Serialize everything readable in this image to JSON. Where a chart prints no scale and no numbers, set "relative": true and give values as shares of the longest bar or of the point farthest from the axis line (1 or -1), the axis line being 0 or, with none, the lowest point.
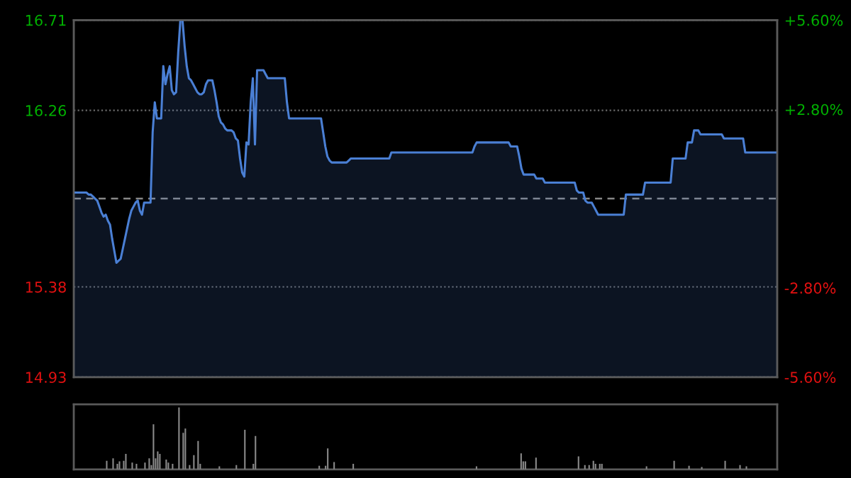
{
  "chart_data": [
    {
      "type": "area",
      "series": [
        {
          "color": "#4a7fd4",
          "values": [
            15.85,
            15.85,
            15.85,
            15.85,
            15.85,
            15.85,
            15.85,
            15.84,
            15.84,
            15.83,
            15.82,
            15.81,
            15.78,
            15.75,
            15.73,
            15.74,
            15.71,
            15.69,
            15.62,
            15.56,
            15.5,
            15.51,
            15.52,
            15.57,
            15.62,
            15.67,
            15.72,
            15.76,
            15.78,
            15.8,
            15.81,
            15.76,
            15.74,
            15.8,
            15.8,
            15.8,
            15.8,
            16.15,
            16.3,
            16.22,
            16.22,
            16.22,
            16.48,
            16.39,
            16.44,
            16.48,
            16.36,
            16.34,
            16.35,
            16.55,
            16.71,
            16.71,
            16.58,
            16.48,
            16.42,
            16.41,
            16.39,
            16.37,
            16.35,
            16.34,
            16.34,
            16.35,
            16.39,
            16.41,
            16.41,
            16.41,
            16.36,
            16.3,
            16.23,
            16.2,
            16.19,
            16.17,
            16.16,
            16.16,
            16.16,
            16.15,
            16.12,
            16.11,
            16.02,
            15.95,
            15.93,
            16.1,
            16.09,
            16.3,
            16.42,
            16.09,
            16.46,
            16.46,
            16.46,
            16.46,
            16.44,
            16.42,
            16.42,
            16.42,
            16.42,
            16.42,
            16.42,
            16.42,
            16.42,
            16.42,
            16.3,
            16.22,
            16.22,
            16.22,
            16.22,
            16.22,
            16.22,
            16.22,
            16.22,
            16.22,
            16.22,
            16.22,
            16.22,
            16.22,
            16.22,
            16.22,
            16.22,
            16.15,
            16.08,
            16.03,
            16.01,
            16.0,
            16.0,
            16.0,
            16.0,
            16.0,
            16.0,
            16.0,
            16.0,
            16.01,
            16.02,
            16.02,
            16.02,
            16.02,
            16.02,
            16.02,
            16.02,
            16.02,
            16.02,
            16.02,
            16.02,
            16.02,
            16.02,
            16.02,
            16.02,
            16.02,
            16.02,
            16.02,
            16.02,
            16.05,
            16.05,
            16.05,
            16.05,
            16.05,
            16.05,
            16.05,
            16.05,
            16.05,
            16.05,
            16.05,
            16.05,
            16.05,
            16.05,
            16.05,
            16.05,
            16.05,
            16.05,
            16.05,
            16.05,
            16.05,
            16.05,
            16.05,
            16.05,
            16.05,
            16.05,
            16.05,
            16.05,
            16.05,
            16.05,
            16.05,
            16.05,
            16.05,
            16.05,
            16.05,
            16.05,
            16.05,
            16.05,
            16.05,
            16.08,
            16.1,
            16.1,
            16.1,
            16.1,
            16.1,
            16.1,
            16.1,
            16.1,
            16.1,
            16.1,
            16.1,
            16.1,
            16.1,
            16.1,
            16.1,
            16.1,
            16.08,
            16.08,
            16.08,
            16.08,
            16.03,
            15.97,
            15.94,
            15.94,
            15.94,
            15.94,
            15.94,
            15.94,
            15.92,
            15.92,
            15.92,
            15.92,
            15.9,
            15.9,
            15.9,
            15.9,
            15.9,
            15.9,
            15.9,
            15.9,
            15.9,
            15.9,
            15.9,
            15.9,
            15.9,
            15.9,
            15.9,
            15.86,
            15.85,
            15.85,
            15.85,
            15.81,
            15.8,
            15.8,
            15.8,
            15.78,
            15.76,
            15.74,
            15.74,
            15.74,
            15.74,
            15.74,
            15.74,
            15.74,
            15.74,
            15.74,
            15.74,
            15.74,
            15.74,
            15.74,
            15.84,
            15.84,
            15.84,
            15.84,
            15.84,
            15.84,
            15.84,
            15.84,
            15.84,
            15.9,
            15.9,
            15.9,
            15.9,
            15.9,
            15.9,
            15.9,
            15.9,
            15.9,
            15.9,
            15.9,
            15.9,
            15.9,
            16.02,
            16.02,
            16.02,
            16.02,
            16.02,
            16.02,
            16.02,
            16.1,
            16.1,
            16.1,
            16.16,
            16.16,
            16.16,
            16.14,
            16.14,
            16.14,
            16.14,
            16.14,
            16.14,
            16.14,
            16.14,
            16.14,
            16.14,
            16.14,
            16.12,
            16.12,
            16.12,
            16.12,
            16.12,
            16.12,
            16.12,
            16.12,
            16.12,
            16.12,
            16.05,
            16.05,
            16.05,
            16.05,
            16.05,
            16.05,
            16.05,
            16.05,
            16.05,
            16.05,
            16.05,
            16.05,
            16.05,
            16.05,
            16.05,
            16.05
          ]
        }
      ],
      "categories": [
        null,
        null,
        null,
        null,
        null,
        null,
        null,
        null,
        null,
        null,
        null,
        null,
        null,
        null,
        null,
        null,
        null,
        null,
        null,
        null,
        null,
        null,
        null,
        null,
        null,
        null,
        null,
        null,
        null,
        null,
        null,
        null,
        null,
        null,
        null,
        null,
        null,
        null,
        null,
        null,
        null,
        null,
        null,
        null,
        null,
        null,
        null,
        null,
        null,
        null,
        null,
        null,
        null,
        null,
        null,
        null,
        null,
        null,
        null,
        null,
        null,
        null,
        null,
        null,
        null,
        null,
        null,
        null,
        null,
        null,
        null,
        null,
        null,
        null,
        null,
        null,
        null,
        null,
        null,
        null,
        null,
        null,
        null,
        null,
        null,
        null,
        null,
        null,
        null,
        null,
        null,
        null,
        null,
        null,
        null,
        null,
        null,
        null,
        null,
        null,
        null,
        null,
        null,
        null,
        null,
        null,
        null,
        null,
        null,
        null,
        null,
        null,
        null,
        null,
        null,
        null,
        null,
        null,
        null,
        null,
        null,
        null,
        null,
        null,
        null,
        null,
        null,
        null,
        null,
        null,
        null,
        null,
        null,
        null,
        null,
        null,
        null,
        null,
        null,
        null,
        null,
        null,
        null,
        null,
        null,
        null,
        null,
        null,
        null,
        null,
        null,
        null,
        null,
        null,
        null,
        null,
        null,
        null,
        null,
        null,
        null,
        null,
        null,
        null,
        null,
        null,
        null,
        null,
        null,
        null,
        null,
        null,
        null,
        null,
        null,
        null,
        null,
        null,
        null,
        null,
        null,
        null,
        null,
        null,
        null,
        null,
        null,
        null,
        null,
        null,
        null,
        null,
        null,
        null,
        null,
        null,
        null,
        null,
        null,
        null,
        null,
        null,
        null,
        null,
        null,
        null,
        null,
        null,
        null,
        null,
        null,
        null,
        null,
        null,
        null,
        null,
        null,
        null,
        null,
        null,
        null,
        null,
        null,
        null,
        null,
        null,
        null,
        null,
        null,
        null,
        null,
        null,
        null,
        null,
        null,
        null,
        null,
        null,
        null,
        null,
        null,
        null,
        null,
        null,
        null,
        null,
        null,
        null,
        null,
        null,
        null,
        null,
        null,
        null,
        null,
        null,
        null,
        null,
        null,
        null,
        null,
        null,
        null,
        null,
        null,
        null,
        null,
        null,
        null,
        null,
        null,
        null,
        null,
        null,
        null,
        null,
        null,
        null,
        null,
        null,
        null,
        null,
        null,
        null,
        null,
        null,
        null,
        null,
        null,
        null,
        null,
        null,
        null,
        null,
        null,
        null,
        null,
        null,
        null,
        null,
        null,
        null,
        null,
        null,
        null,
        null,
        null,
        null,
        null,
        null,
        null,
        null,
        null,
        null,
        null,
        null,
        null,
        null,
        null,
        null,
        null,
        null,
        null,
        null,
        null,
        null,
        null,
        null,
        null,
        null,
        null
      ],
      "ylim": [
        14.93,
        16.71
      ],
      "yticks": [
        14.93,
        15.38,
        16.26,
        16.71
      ],
      "y2lim": [
        -5.6,
        5.6
      ],
      "y2ticks": [
        {
          "value": -5.6,
          "label": "-5.60%"
        },
        {
          "value": -2.8,
          "label": "-2.80%"
        },
        {
          "value": 2.8,
          "label": "+2.80%"
        },
        {
          "value": 5.6,
          "label": "+5.60%"
        }
      ],
      "ref_lines": [
        {
          "axis": "y",
          "value": 15.82,
          "line_style": "dashed",
          "color": "#888888"
        }
      ],
      "grid": "y"
    },
    {
      "type": "bar",
      "relative": true,
      "categories": [
        null,
        null,
        null,
        null,
        null,
        null,
        null,
        null,
        null,
        null,
        null,
        null,
        null,
        null,
        null,
        null,
        null,
        null,
        null,
        null,
        null,
        null,
        null,
        null,
        null,
        null,
        null,
        null,
        null,
        null,
        null,
        null,
        null,
        null,
        null,
        null,
        null,
        null,
        null,
        null,
        null,
        null,
        null,
        null,
        null,
        null,
        null,
        null,
        null,
        null,
        null,
        null,
        null,
        null,
        null,
        null,
        null,
        null,
        null,
        null,
        null,
        null,
        null,
        null,
        null,
        null,
        null,
        null,
        null,
        null,
        null,
        null,
        null,
        null,
        null,
        null,
        null,
        null,
        null,
        null,
        null,
        null,
        null,
        null,
        null,
        null,
        null,
        null,
        null,
        null,
        null,
        null,
        null,
        null,
        null,
        null,
        null,
        null,
        null,
        null,
        null,
        null,
        null,
        null,
        null,
        null,
        null,
        null,
        null,
        null,
        null,
        null,
        null,
        null,
        null,
        null,
        null,
        null,
        null,
        null,
        null,
        null,
        null,
        null,
        null,
        null,
        null,
        null,
        null,
        null,
        null,
        null,
        null,
        null,
        null,
        null,
        null,
        null,
        null,
        null,
        null,
        null,
        null,
        null,
        null,
        null,
        null,
        null,
        null,
        null,
        null,
        null,
        null,
        null,
        null,
        null,
        null,
        null,
        null,
        null,
        null,
        null,
        null,
        null,
        null,
        null,
        null,
        null,
        null,
        null,
        null,
        null,
        null,
        null,
        null,
        null,
        null,
        null,
        null,
        null,
        null,
        null,
        null,
        null,
        null,
        null,
        null,
        null,
        null,
        null,
        null,
        null,
        null,
        null,
        null,
        null,
        null,
        null,
        null,
        null,
        null,
        null,
        null,
        null,
        null,
        null,
        null,
        null,
        null,
        null,
        null,
        null,
        null,
        null,
        null,
        null,
        null,
        null,
        null,
        null,
        null,
        null,
        null,
        null,
        null,
        null,
        null,
        null,
        null,
        null,
        null,
        null,
        null,
        null,
        null,
        null,
        null,
        null,
        null,
        null,
        null,
        null,
        null,
        null,
        null,
        null,
        null,
        null,
        null,
        null,
        null,
        null,
        null,
        null,
        null,
        null,
        null,
        null,
        null,
        null,
        null,
        null,
        null,
        null,
        null,
        null,
        null,
        null,
        null,
        null,
        null,
        null,
        null,
        null,
        null,
        null,
        null,
        null,
        null,
        null,
        null,
        null,
        null,
        null,
        null,
        null,
        null,
        null,
        null,
        null,
        null,
        null,
        null,
        null,
        null,
        null,
        null,
        null,
        null,
        null,
        null,
        null,
        null,
        null,
        null,
        null,
        null,
        null,
        null,
        null,
        null,
        null,
        null,
        null,
        null,
        null,
        null,
        null,
        null,
        null,
        null,
        null,
        null,
        null,
        null,
        null,
        null,
        null,
        null,
        null,
        null
      ],
      "values": [
        null,
        null,
        null,
        null,
        null,
        null,
        null,
        null,
        null,
        null,
        null,
        null,
        null,
        null,
        null,
        0.14,
        null,
        null,
        0.18,
        null,
        0.09,
        0.13,
        null,
        0.14,
        0.25,
        null,
        null,
        0.11,
        null,
        0.09,
        null,
        null,
        null,
        0.11,
        null,
        0.18,
        0.07,
        0.73,
        0.18,
        0.29,
        0.25,
        null,
        null,
        0.16,
        0.11,
        null,
        0.09,
        null,
        null,
        1.0,
        null,
        0.59,
        0.66,
        null,
        0.07,
        null,
        0.23,
        null,
        0.46,
        0.09,
        null,
        null,
        null,
        null,
        null,
        null,
        null,
        null,
        0.05,
        null,
        null,
        null,
        null,
        null,
        null,
        null,
        0.07,
        null,
        null,
        null,
        0.64,
        null,
        null,
        null,
        0.09,
        0.54,
        null,
        null,
        null,
        null,
        null,
        null,
        null,
        null,
        null,
        null,
        null,
        null,
        null,
        null,
        null,
        null,
        null,
        null,
        null,
        null,
        null,
        null,
        null,
        null,
        null,
        null,
        null,
        null,
        null,
        0.06,
        null,
        null,
        0.06,
        0.34,
        null,
        null,
        0.12,
        null,
        null,
        null,
        null,
        null,
        null,
        null,
        null,
        0.09,
        null,
        null,
        null,
        null,
        null,
        null,
        null,
        null,
        null,
        null,
        null,
        null,
        null,
        null,
        null,
        null,
        null,
        null,
        null,
        null,
        null,
        null,
        null,
        null,
        null,
        null,
        null,
        null,
        null,
        null,
        null,
        null,
        null,
        null,
        null,
        null,
        null,
        null,
        null,
        null,
        null,
        null,
        null,
        null,
        null,
        null,
        null,
        null,
        null,
        null,
        null,
        null,
        null,
        null,
        null,
        null,
        null,
        0.05,
        null,
        null,
        null,
        null,
        null,
        null,
        null,
        null,
        null,
        null,
        null,
        null,
        null,
        null,
        null,
        null,
        null,
        null,
        null,
        null,
        0.26,
        0.13,
        0.13,
        null,
        null,
        null,
        null,
        0.19,
        null,
        null,
        null,
        null,
        null,
        null,
        null,
        null,
        null,
        null,
        null,
        null,
        null,
        null,
        null,
        null,
        null,
        null,
        null,
        0.21,
        null,
        null,
        0.07,
        null,
        0.07,
        null,
        0.14,
        0.09,
        null,
        0.09,
        0.09,
        null,
        null,
        null,
        null,
        null,
        null,
        null,
        null,
        null,
        null,
        null,
        null,
        null,
        null,
        null,
        null,
        null,
        null,
        null,
        null,
        0.05,
        null,
        null,
        null,
        null,
        null,
        null,
        null,
        null,
        null,
        null,
        null,
        null,
        0.14,
        null,
        null,
        null,
        null,
        null,
        null,
        0.06,
        null,
        null,
        null,
        null,
        null,
        0.04,
        null,
        null,
        null,
        null,
        null,
        null,
        null,
        null,
        null,
        null,
        0.14,
        null,
        null,
        null,
        null,
        null,
        null,
        0.07,
        null,
        null,
        0.05,
        null,
        null,
        null,
        null,
        null,
        null,
        null,
        null,
        null,
        null,
        null,
        null,
        null,
        null
      ],
      "color": "#8a8a8a"
    }
  ]
}
